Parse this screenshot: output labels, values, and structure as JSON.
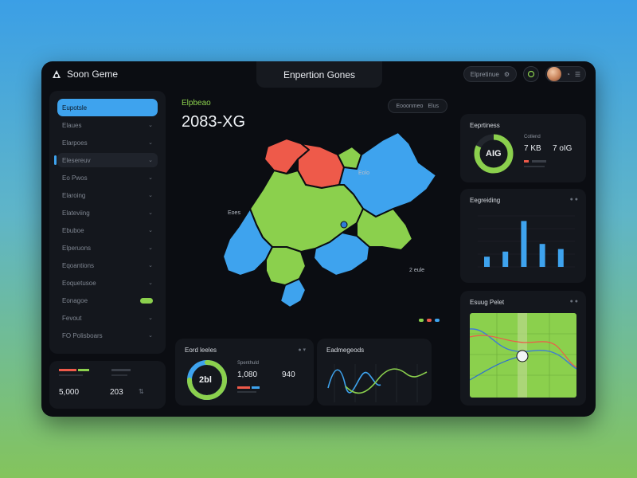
{
  "titlebar": {
    "brand": "Soon Geme",
    "center_tab": "Enpertion Gones",
    "pill_label": "Elpretinue",
    "colors": {
      "accent_blue": "#3ea3ee",
      "accent_green": "#8bd04d",
      "accent_red": "#ee5a4a"
    }
  },
  "sidebar": {
    "items": [
      {
        "label": "Eupotsle",
        "state": "active"
      },
      {
        "label": "Elaues",
        "state": "normal"
      },
      {
        "label": "Elarpoes",
        "state": "normal"
      },
      {
        "label": "Elesereuv",
        "state": "hover"
      },
      {
        "label": "Eo Pwos",
        "state": "normal"
      },
      {
        "label": "Elaroing",
        "state": "normal"
      },
      {
        "label": "Elateviing",
        "state": "normal"
      },
      {
        "label": "Ebuboe",
        "state": "normal"
      },
      {
        "label": "Elperuons",
        "state": "normal"
      },
      {
        "label": "Eqoantions",
        "state": "normal"
      },
      {
        "label": "Eoquetusoe",
        "state": "normal"
      },
      {
        "label": "Eonagoe",
        "state": "toggle"
      },
      {
        "label": "Fevout",
        "state": "normal"
      },
      {
        "label": "FO Polisboars",
        "state": "normal"
      }
    ],
    "stats": {
      "value_left": "5,000",
      "value_right": "203"
    }
  },
  "map": {
    "subtitle": "Elpbeao",
    "title": "2083-XG",
    "filter_left": "Eooonmeo",
    "filter_right": "Elus",
    "labels": [
      "Eolo",
      "Eoes",
      "2 eule"
    ]
  },
  "bottom_cards": {
    "donut": {
      "title": "Eord leeles",
      "center": "2bl",
      "stat_label": "Spenthuld",
      "value_a": "1,080",
      "value_b": "940",
      "progress": 0.75
    },
    "waves": {
      "title": "Eadmegeods"
    }
  },
  "right_cards": {
    "kpi": {
      "title": "Eeprtiness",
      "ring_text": "AIG",
      "value_a": "7 KB",
      "value_b": "7 oIG",
      "label": "Cotlend",
      "progress": 0.82
    },
    "bars": {
      "title": "Eegreiding",
      "values": [
        4,
        6,
        18,
        9,
        7
      ]
    },
    "lines": {
      "title": "Esuug Pelet"
    }
  }
}
